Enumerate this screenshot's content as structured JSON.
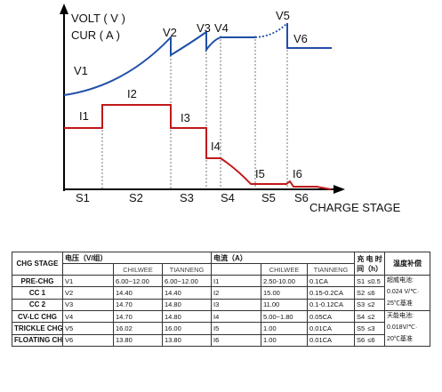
{
  "chart_data": {
    "type": "line",
    "y_labels": [
      "VOLT ( V )",
      "CUR ( A )"
    ],
    "x_label": "CHARGE STAGE",
    "stages": [
      "S1",
      "S2",
      "S3",
      "S4",
      "S5",
      "S6"
    ],
    "voltage_points": [
      "V1",
      "V2",
      "V3",
      "V4",
      "V5",
      "V6"
    ],
    "current_points": [
      "I1",
      "I2",
      "I3",
      "I4",
      "I5",
      "I6"
    ],
    "colors": {
      "voltage": "#1f4fa8",
      "current": "#c0181a",
      "axis": "#000000",
      "grid": "#555555"
    }
  },
  "table": {
    "headers": {
      "stage": "CHG STAGE",
      "voltage": "电压（V/组）",
      "current": "电流（A）",
      "time": "充 电 时 间（h）",
      "temp": "温度补偿"
    },
    "brands": [
      "CHILWEE",
      "TIANNENG",
      "CHILWEE",
      "TIANNENG"
    ],
    "rows": [
      {
        "stage": "PRE-CHG",
        "v": "V1",
        "v_chilwee": "6.00~12.00",
        "v_tianneng": "6.00~12.00",
        "i": "I1",
        "i_chilwee": "2.50-10.00",
        "i_tianneng": "0.1CA",
        "s": "S1",
        "t": "≤0.5"
      },
      {
        "stage": "CC 1",
        "v": "V2",
        "v_chilwee": "14.40",
        "v_tianneng": "14.40",
        "i": "I2",
        "i_chilwee": "15.00",
        "i_tianneng": "0.15-0.2CA",
        "s": "S2",
        "t": "≤6"
      },
      {
        "stage": "CC 2",
        "v": "V3",
        "v_chilwee": "14.70",
        "v_tianneng": "14.80",
        "i": "I3",
        "i_chilwee": "11.00",
        "i_tianneng": "0.1-0.12CA",
        "s": "S3",
        "t": "≤2"
      },
      {
        "stage": "CV-LC CHG",
        "v": "V4",
        "v_chilwee": "14.70",
        "v_tianneng": "14.80",
        "i": "I4",
        "i_chilwee": "5.00~1.80",
        "i_tianneng": "0.05CA",
        "s": "S4",
        "t": "≤2"
      },
      {
        "stage": "TRICKLE CHG",
        "v": "V5",
        "v_chilwee": "16.02",
        "v_tianneng": "16.00",
        "i": "I5",
        "i_chilwee": "1.00",
        "i_tianneng": "0.01CA",
        "s": "S5",
        "t": "≤3"
      },
      {
        "stage": "FLOATING CHG",
        "v": "V6",
        "v_chilwee": "13.80",
        "v_tianneng": "13.80",
        "i": "I6",
        "i_chilwee": "1.00",
        "i_tianneng": "0.01CA",
        "s": "S6",
        "t": "≤6"
      }
    ],
    "comp_chilwee": [
      "超威电池:",
      "0.024 V/℃·",
      "25℃基准"
    ],
    "comp_tianneng": [
      "天能电池:",
      "0.018V/℃·",
      "20℃基准"
    ]
  }
}
